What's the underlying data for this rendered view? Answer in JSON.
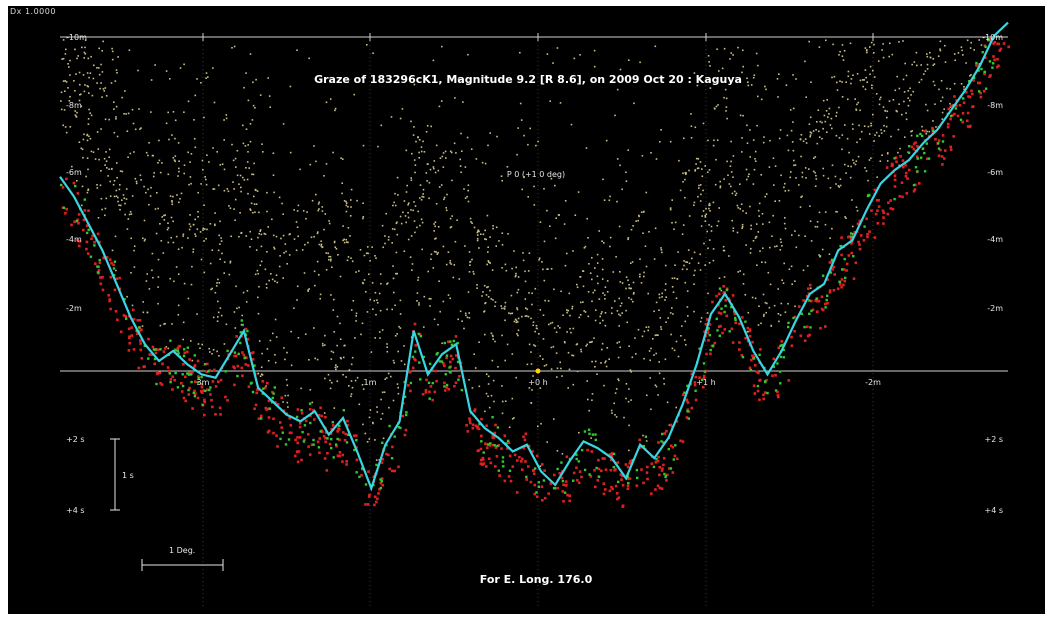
{
  "chart_data": {
    "type": "scatter",
    "title": "Graze of  183296cK1,  Magnitude 9.2 [R 8.6],  on 2009 Oct 20  :  Kaguya",
    "footer": "For E. Long. 176.0",
    "corner_label": "Dx 1.0000",
    "center_label": "P 0 (+1 0 deg)",
    "scale_bar_label": "1 Deg.",
    "scale_bar_small_label": "1 s",
    "x_tick_labels": [
      "3m",
      "1m",
      "+0 h",
      "+1 h",
      "-2m"
    ],
    "y_tick_labels_left": [
      "-10m",
      "-8m",
      "-6m",
      "-4m",
      "-2m",
      "+2 s",
      "+4 s"
    ],
    "y_tick_labels_right": [
      "-10m",
      "-8m",
      "-6m",
      "-4m",
      "-2m",
      "+2 s",
      "+4 s"
    ],
    "colors": {
      "background": "#000000",
      "limb_profile": "#38d6e2",
      "terrain_points": "#c8bd84",
      "observation_red": "#e02020",
      "observation_green": "#2ecb2e",
      "grid": "#cfcfcf",
      "text": "#ffffff"
    },
    "series": [
      {
        "kind": "profile",
        "values": [
          -5.8,
          -5.2,
          -4.4,
          -3.6,
          -2.6,
          -1.6,
          -0.8,
          -0.3,
          -0.6,
          -0.2,
          0.1,
          0.2,
          -0.5,
          -1.2,
          0.5,
          0.9,
          1.3,
          1.5,
          1.2,
          1.9,
          1.4,
          2.4,
          3.5,
          2.2,
          1.5,
          -1.2,
          0.1,
          -0.5,
          -0.8,
          1.2,
          1.7,
          2.0,
          2.4,
          2.2,
          3.0,
          3.4,
          2.7,
          2.1,
          2.3,
          2.6,
          3.2,
          2.2,
          2.6,
          2.0,
          1.0,
          -0.2,
          -1.7,
          -2.3,
          -1.6,
          -0.6,
          0.1,
          -0.6,
          -1.5,
          -2.3,
          -2.6,
          -3.6,
          -3.9,
          -4.8,
          -5.6,
          -6.0,
          -6.3,
          -6.8,
          -7.2,
          -7.8,
          -8.4,
          -9.1,
          -10.0,
          -10.4
        ]
      }
    ]
  }
}
